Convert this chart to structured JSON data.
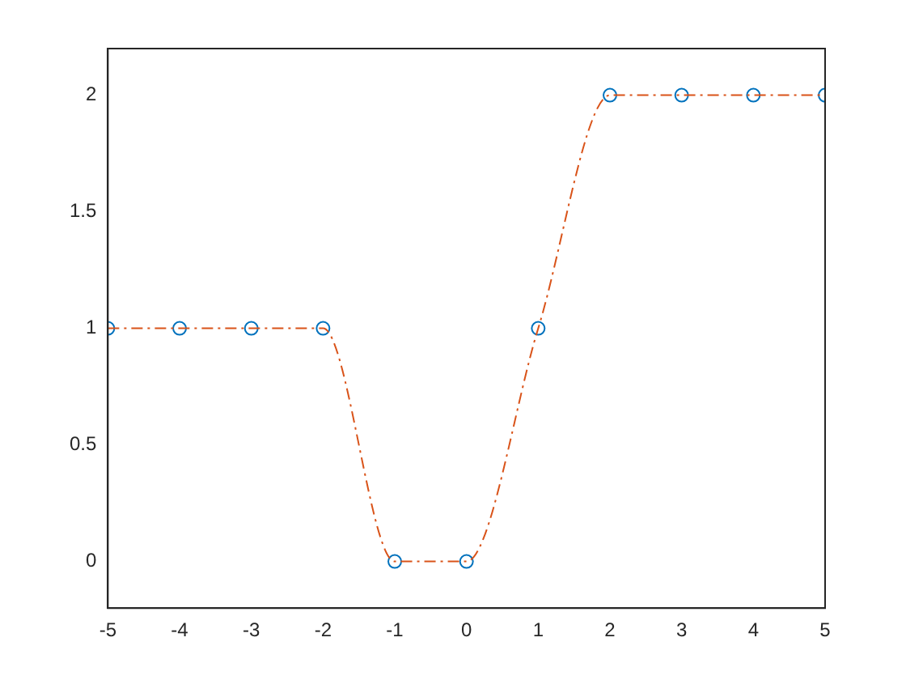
{
  "chart_data": {
    "type": "line",
    "x": [
      -5,
      -4,
      -3,
      -2,
      -1,
      0,
      1,
      2,
      3,
      4,
      5
    ],
    "series": [
      {
        "type": "scatter",
        "color": "#0072bd",
        "marker": "circle",
        "values": [
          1,
          1,
          1,
          1,
          0,
          0,
          1,
          2,
          2,
          2,
          2
        ]
      },
      {
        "color": "#d95319",
        "line_style": "dashed",
        "marker": "none",
        "values": [
          1,
          1,
          1,
          1,
          0,
          0,
          1,
          2,
          2,
          2,
          2
        ]
      }
    ],
    "xlim": [
      -5,
      5
    ],
    "xticks": [
      -5,
      -4,
      -3,
      -2,
      -1,
      0,
      1,
      2,
      3,
      4,
      5
    ],
    "ylim": [
      -0.2,
      2.2
    ],
    "yticks": [
      0,
      0.5,
      1,
      1.5,
      2
    ],
    "grid": false,
    "legend": false
  }
}
